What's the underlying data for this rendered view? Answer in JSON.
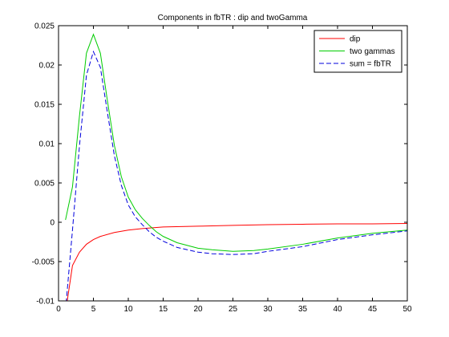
{
  "chart_data": {
    "type": "line",
    "title": "Components in fbTR : dip and twoGamma",
    "xlabel": "",
    "ylabel": "",
    "xlim": [
      0,
      50
    ],
    "ylim": [
      -0.01,
      0.025
    ],
    "xticks": [
      0,
      5,
      10,
      15,
      20,
      25,
      30,
      35,
      40,
      45,
      50
    ],
    "yticks": [
      -0.01,
      -0.005,
      0,
      0.005,
      0.01,
      0.015,
      0.02,
      0.025
    ],
    "xtick_labels": [
      "0",
      "5",
      "10",
      "15",
      "20",
      "25",
      "30",
      "35",
      "40",
      "45",
      "50"
    ],
    "ytick_labels": [
      "-0.01",
      "-0.005",
      "0",
      "0.005",
      "0.01",
      "0.015",
      "0.02",
      "0.025"
    ],
    "grid": false,
    "legend_position": "top-right",
    "series": [
      {
        "name": "dip",
        "color": "#ff0000",
        "style": "solid",
        "x": [
          1,
          1.5,
          2,
          3,
          4,
          5,
          6,
          8,
          10,
          12,
          15,
          20,
          25,
          30,
          35,
          40,
          45,
          50
        ],
        "y": [
          -0.0115,
          -0.0085,
          -0.0055,
          -0.0038,
          -0.0028,
          -0.0022,
          -0.0018,
          -0.0013,
          -0.001,
          -0.0008,
          -0.0006,
          -0.0005,
          -0.0004,
          -0.0003,
          -0.00025,
          -0.0002,
          -0.0002,
          -0.00015
        ]
      },
      {
        "name": "two gammas",
        "color": "#00cc00",
        "style": "solid",
        "x": [
          1,
          2,
          3,
          4,
          5,
          6,
          7,
          8,
          9,
          10,
          11,
          12,
          13,
          14,
          15,
          17,
          20,
          22,
          25,
          28,
          30,
          35,
          40,
          45,
          50
        ],
        "y": [
          0.0003,
          0.0045,
          0.0135,
          0.0215,
          0.0239,
          0.0215,
          0.0155,
          0.0098,
          0.0058,
          0.0032,
          0.0016,
          0.0005,
          -0.0004,
          -0.0012,
          -0.0018,
          -0.0026,
          -0.0033,
          -0.0035,
          -0.0037,
          -0.0036,
          -0.0034,
          -0.0028,
          -0.002,
          -0.0014,
          -0.001
        ]
      },
      {
        "name": "sum = fbTR",
        "color": "#0000dd",
        "style": "dashed",
        "x": [
          1,
          2,
          3,
          4,
          5,
          6,
          7,
          8,
          9,
          10,
          11,
          12,
          13,
          14,
          15,
          17,
          20,
          22,
          25,
          28,
          30,
          35,
          40,
          45,
          50
        ],
        "y": [
          -0.0112,
          -0.001,
          0.0097,
          0.0187,
          0.0217,
          0.0197,
          0.014,
          0.0085,
          0.0047,
          0.0022,
          0.0007,
          -0.0003,
          -0.0012,
          -0.0019,
          -0.0024,
          -0.0032,
          -0.0038,
          -0.004,
          -0.0041,
          -0.004,
          -0.0037,
          -0.0031,
          -0.0022,
          -0.0016,
          -0.0011
        ]
      }
    ]
  }
}
